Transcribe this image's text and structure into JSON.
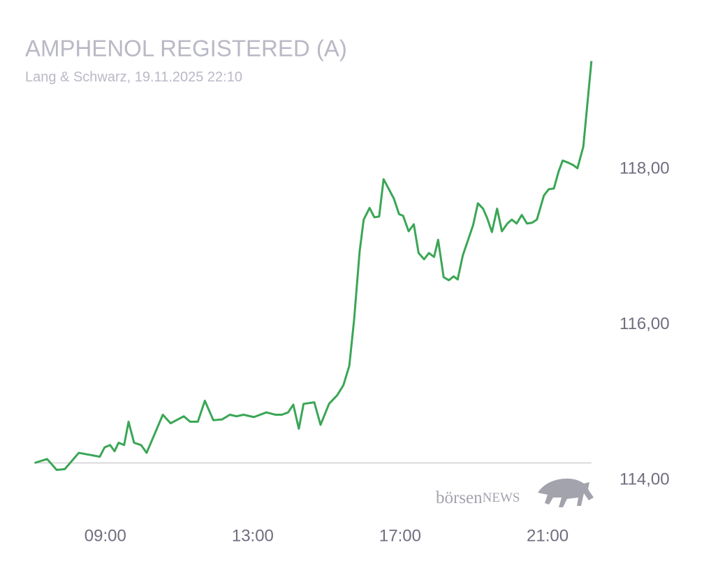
{
  "chart_data": {
    "type": "line",
    "title": "AMPHENOL REGISTERED (A)",
    "subtitle": "Lang & Schwarz, 19.11.2025 22:10",
    "logo": {
      "part1": "börsen",
      "part2": "NEWS"
    },
    "xlim": [
      6.9,
      22.25
    ],
    "xticks": [
      {
        "value": 9,
        "label": "09:00"
      },
      {
        "value": 13,
        "label": "13:00"
      },
      {
        "value": 17,
        "label": "17:00"
      },
      {
        "value": 21,
        "label": "21:00"
      }
    ],
    "ylim": [
      113.5,
      119.5
    ],
    "yticks": [
      {
        "value": 114,
        "label": "114,00"
      },
      {
        "value": 116,
        "label": "116,00"
      },
      {
        "value": 118,
        "label": "118,00"
      }
    ],
    "reference_line": 114.22,
    "grid": false,
    "x": [
      7.08,
      7.42,
      7.68,
      7.9,
      8.28,
      8.85,
      8.98,
      9.13,
      9.25,
      9.36,
      9.51,
      9.63,
      9.78,
      9.97,
      10.12,
      10.56,
      10.77,
      11.13,
      11.3,
      11.51,
      11.7,
      11.93,
      12.17,
      12.38,
      12.56,
      12.75,
      13.03,
      13.37,
      13.62,
      13.79,
      13.96,
      14.1,
      14.25,
      14.38,
      14.67,
      14.84,
      15.07,
      15.29,
      15.46,
      15.62,
      15.75,
      15.9,
      16.01,
      16.17,
      16.3,
      16.43,
      16.55,
      16.83,
      16.97,
      17.08,
      17.23,
      17.37,
      17.5,
      17.65,
      17.78,
      17.92,
      18.03,
      18.18,
      18.32,
      18.45,
      18.56,
      18.7,
      18.98,
      19.11,
      19.25,
      19.36,
      19.49,
      19.63,
      19.76,
      19.91,
      20.03,
      20.16,
      20.3,
      20.44,
      20.58,
      20.71,
      20.9,
      21.03,
      21.17,
      21.3,
      21.41,
      21.57,
      21.7,
      21.81,
      21.97,
      22.19
    ],
    "series": [
      {
        "color": "#3aa655",
        "values": [
          114.22,
          114.27,
          114.13,
          114.14,
          114.35,
          114.3,
          114.42,
          114.45,
          114.37,
          114.48,
          114.45,
          114.75,
          114.48,
          114.45,
          114.35,
          114.84,
          114.73,
          114.82,
          114.75,
          114.75,
          115.02,
          114.77,
          114.78,
          114.84,
          114.82,
          114.84,
          114.81,
          114.87,
          114.84,
          114.84,
          114.87,
          114.97,
          114.66,
          114.98,
          115.0,
          114.71,
          114.98,
          115.09,
          115.22,
          115.47,
          116.06,
          116.94,
          117.35,
          117.5,
          117.38,
          117.39,
          117.87,
          117.62,
          117.42,
          117.4,
          117.2,
          117.29,
          116.92,
          116.84,
          116.92,
          116.87,
          117.09,
          116.61,
          116.57,
          116.62,
          116.58,
          116.89,
          117.28,
          117.56,
          117.49,
          117.37,
          117.19,
          117.49,
          117.2,
          117.3,
          117.35,
          117.3,
          117.41,
          117.3,
          117.31,
          117.35,
          117.66,
          117.74,
          117.75,
          117.97,
          118.11,
          118.08,
          118.05,
          118.01,
          118.29,
          119.39
        ]
      }
    ]
  }
}
